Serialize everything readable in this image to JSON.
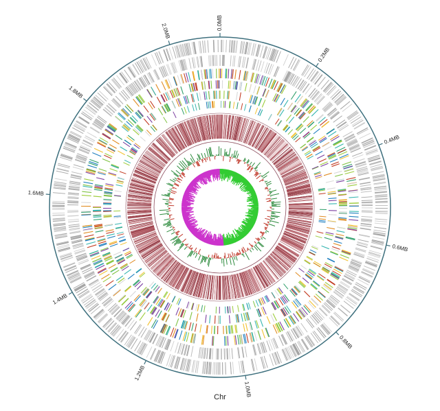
{
  "chart_data": {
    "type": "circos",
    "xlabel": "Chr",
    "xlim": [
      0,
      2.1
    ],
    "xticks": [
      {
        "value": 0,
        "label": "0.0MB"
      },
      {
        "value": 0.2,
        "label": "0.2MB"
      },
      {
        "value": 0.4,
        "label": "0.4MB"
      },
      {
        "value": 0.6,
        "label": "0.6MB"
      },
      {
        "value": 0.8,
        "label": "0.8MB"
      },
      {
        "value": 1.0,
        "label": "1.0MB"
      },
      {
        "value": 1.2,
        "label": "1.2MB"
      },
      {
        "value": 1.4,
        "label": "1.4MB"
      },
      {
        "value": 1.6,
        "label": "1.6MB"
      },
      {
        "value": 1.8,
        "label": "1.8MB"
      },
      {
        "value": 2.0,
        "label": "2.0MB"
      }
    ]
  }
}
